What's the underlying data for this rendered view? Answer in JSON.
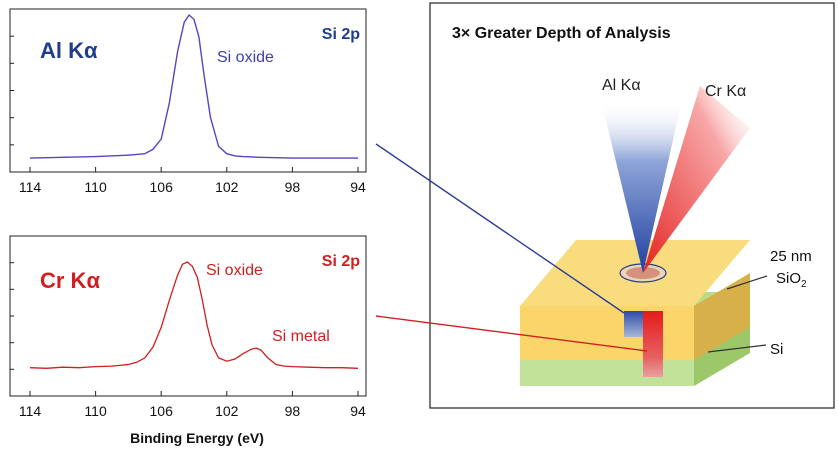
{
  "chart_data": [
    {
      "type": "line",
      "title": "Al Kα",
      "region_label": "Si 2p",
      "xlim": [
        114,
        94
      ],
      "x_ticks": [
        114,
        110,
        106,
        102,
        98,
        94
      ],
      "annotations": [
        {
          "text": "Si oxide",
          "x": 103.9
        }
      ],
      "series": [
        {
          "color": "#5a43c4",
          "x": [
            114,
            112,
            110,
            108,
            107,
            106.5,
            106,
            105.5,
            105,
            104.6,
            104.3,
            104.0,
            103.7,
            103.4,
            103.0,
            102.5,
            102,
            101.5,
            101,
            100,
            98,
            96,
            94
          ],
          "y": [
            0.02,
            0.025,
            0.03,
            0.04,
            0.05,
            0.08,
            0.15,
            0.4,
            0.75,
            0.95,
            1.0,
            0.97,
            0.85,
            0.6,
            0.3,
            0.1,
            0.05,
            0.035,
            0.03,
            0.025,
            0.02,
            0.02,
            0.02
          ]
        }
      ]
    },
    {
      "type": "line",
      "title": "Cr Kα",
      "region_label": "Si 2p",
      "xlabel": "Binding Energy (eV)",
      "xlim": [
        114,
        94
      ],
      "x_ticks": [
        114,
        110,
        106,
        102,
        98,
        94
      ],
      "annotations": [
        {
          "text": "Si oxide",
          "x": 103.8
        },
        {
          "text": "Si metal",
          "x": 99.8
        }
      ],
      "series": [
        {
          "color": "#d21e1e",
          "x": [
            114,
            113,
            112,
            111,
            110,
            109,
            108,
            107.5,
            107,
            106.5,
            106,
            105.5,
            105,
            104.7,
            104.4,
            104.1,
            103.8,
            103.5,
            103.2,
            102.9,
            102.5,
            102,
            101.5,
            101,
            100.5,
            100.2,
            99.9,
            99.5,
            99,
            98.5,
            98,
            97,
            96,
            95,
            94
          ],
          "y": [
            0.03,
            0.025,
            0.035,
            0.03,
            0.04,
            0.045,
            0.06,
            0.08,
            0.12,
            0.22,
            0.4,
            0.65,
            0.88,
            0.98,
            1.0,
            0.96,
            0.86,
            0.66,
            0.42,
            0.24,
            0.12,
            0.09,
            0.11,
            0.16,
            0.2,
            0.21,
            0.19,
            0.12,
            0.06,
            0.045,
            0.04,
            0.035,
            0.03,
            0.03,
            0.025
          ]
        }
      ]
    }
  ],
  "diagram": {
    "title": "3× Greater Depth of Analysis",
    "beam_al_label": "Al Kα",
    "beam_cr_label": "Cr Kα",
    "layer_top_thickness": "25 nm",
    "layer_top_material": "SiO",
    "layer_top_subscript": "2",
    "substrate_label": "Si",
    "colors": {
      "al": "#1f3fa0",
      "cr": "#e31b1b",
      "oxide": "#fad56a",
      "substrate": "#b9dc8a"
    }
  },
  "colors": {
    "al_title": "#1f3d8c",
    "cr_title": "#d21e1e"
  }
}
